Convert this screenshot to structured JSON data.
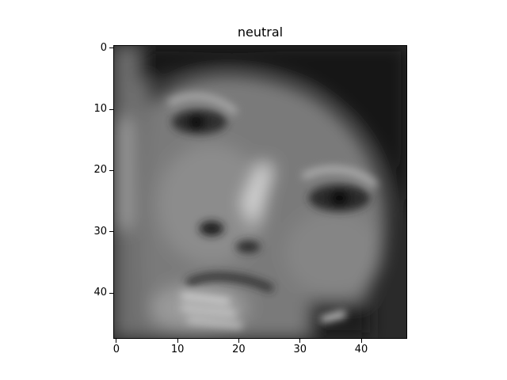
{
  "figure": {
    "title": "neutral",
    "image": {
      "description_kind": "grayscale-photo",
      "rows": 48,
      "cols": 48,
      "cmap": "gray"
    },
    "x_ticks": [
      "0",
      "10",
      "20",
      "30",
      "40"
    ],
    "y_ticks": [
      "0",
      "10",
      "20",
      "30",
      "40"
    ],
    "x_tick_values": [
      0,
      10,
      20,
      30,
      40
    ],
    "y_tick_values": [
      0,
      10,
      20,
      30,
      40
    ],
    "xlim": [
      -0.5,
      47.5
    ],
    "ylim": [
      47.5,
      -0.5
    ]
  }
}
